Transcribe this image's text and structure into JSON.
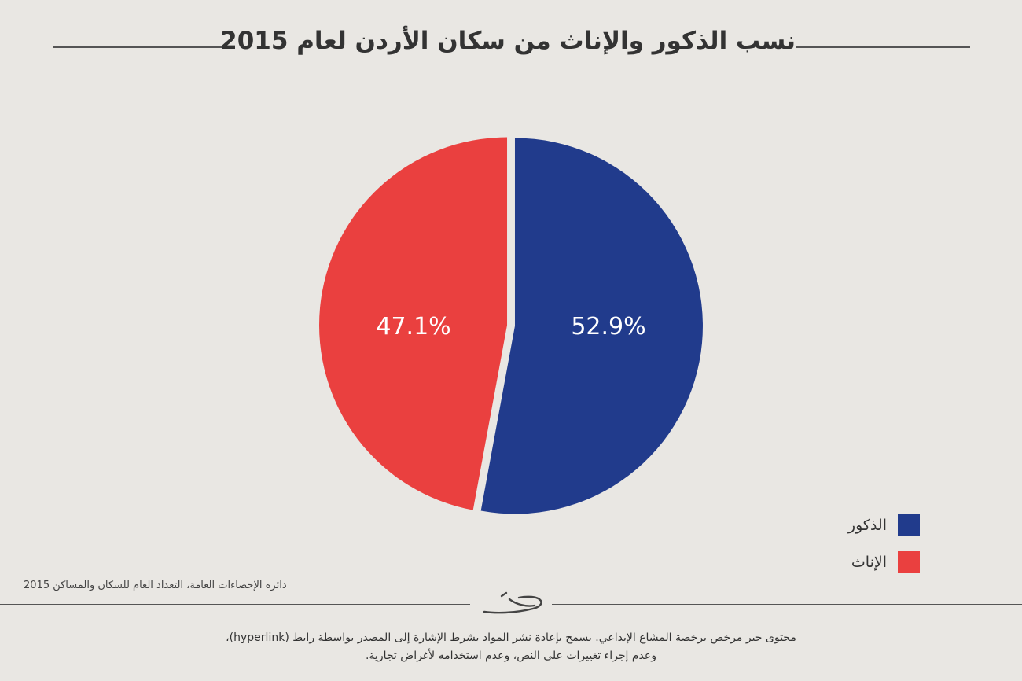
{
  "title": "نسب الذكور والإناث من سكان الأردن لعام 2015",
  "chart_data": {
    "type": "pie",
    "categories": [
      "الذكور",
      "الإناث"
    ],
    "values": [
      52.9,
      47.1
    ],
    "labels": [
      "52.9%",
      "47.1%"
    ],
    "colors": [
      "#213b8c",
      "#ea403f"
    ],
    "legend_placement": "bottom-right"
  },
  "source": "دائرة الإحصاءات العامة، التعداد العام للسكان والمساكن 2015",
  "license": {
    "line1": "محتوى حبر مرخص برخصة المشاع الإبداعي. يسمح بإعادة نشر المواد بشرط الإشارة إلى المصدر بواسطة رابط (hyperlink)،",
    "line2": "وعدم إجراء تغييرات على النص، وعدم استخدامه لأغراض تجارية."
  }
}
